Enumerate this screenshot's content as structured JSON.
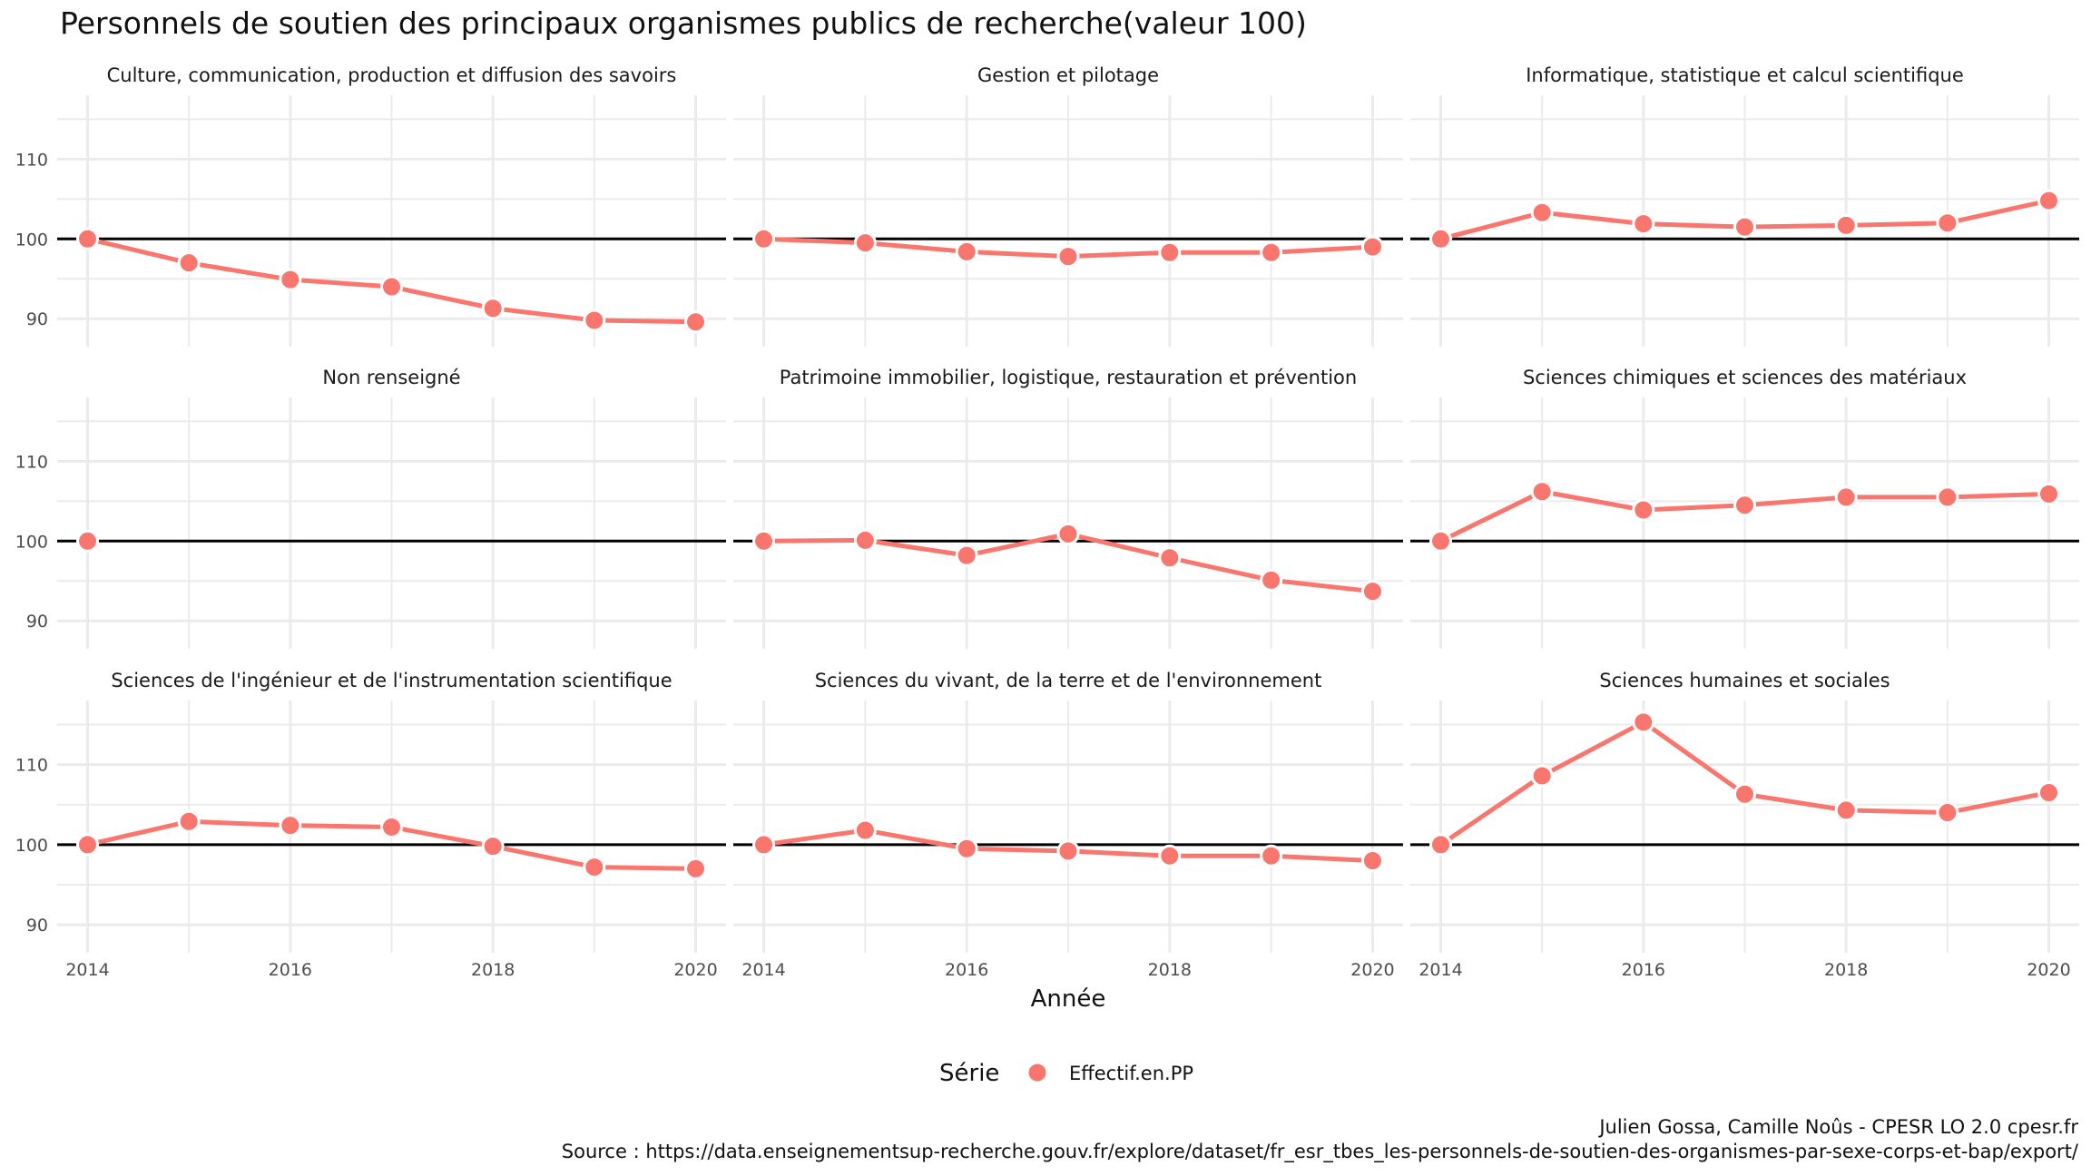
{
  "title": "Personnels de soutien des principaux organismes publics de recherche(valeur 100)",
  "caption_line1": "Julien Gossa, Camille Noûs - CPESR LO 2.0 cpesr.fr",
  "caption_line2": "Source : https://data.enseignementsup-recherche.gouv.fr/explore/dataset/fr_esr_tbes_les-personnels-de-soutien-des-organismes-par-sexe-corps-et-bap/export/",
  "legend": {
    "title": "Série",
    "entries": [
      "Effectif.en.PP"
    ]
  },
  "colors": {
    "series": "#F8766D",
    "reference_line": "#000000",
    "grid": "#EBEBEB"
  },
  "chart_data": {
    "type": "line",
    "xlabel": "Année",
    "ylabel": "",
    "x_ticks": [
      2014,
      2016,
      2018,
      2020
    ],
    "y_ticks": [
      90,
      100,
      110
    ],
    "xlim": [
      2013.7,
      2020.3
    ],
    "ylim": [
      86.5,
      118
    ],
    "reference_value": 100,
    "grid": true,
    "legend_position": "bottom",
    "x": [
      2014,
      2015,
      2016,
      2017,
      2018,
      2019,
      2020
    ],
    "panels": [
      {
        "title": "Culture, communication, production et diffusion des savoirs",
        "series": [
          {
            "name": "Effectif.en.PP",
            "values": [
              100,
              97.0,
              94.9,
              94.0,
              91.3,
              89.8,
              89.6
            ]
          }
        ]
      },
      {
        "title": "Gestion et pilotage",
        "series": [
          {
            "name": "Effectif.en.PP",
            "values": [
              100,
              99.5,
              98.4,
              97.8,
              98.3,
              98.3,
              99.0
            ]
          }
        ]
      },
      {
        "title": "Informatique, statistique et calcul scientifique",
        "series": [
          {
            "name": "Effectif.en.PP",
            "values": [
              100,
              103.3,
              101.9,
              101.5,
              101.7,
              102.0,
              104.8
            ]
          }
        ]
      },
      {
        "title": "Non renseigné",
        "series": [
          {
            "name": "Effectif.en.PP",
            "values": [
              100,
              null,
              null,
              null,
              null,
              null,
              null
            ]
          }
        ]
      },
      {
        "title": "Patrimoine immobilier, logistique, restauration et prévention",
        "series": [
          {
            "name": "Effectif.en.PP",
            "values": [
              100,
              100.1,
              98.2,
              100.9,
              97.9,
              95.1,
              93.7
            ]
          }
        ]
      },
      {
        "title": "Sciences chimiques et sciences des matériaux",
        "series": [
          {
            "name": "Effectif.en.PP",
            "values": [
              100,
              106.2,
              103.9,
              104.5,
              105.5,
              105.5,
              105.9
            ]
          }
        ]
      },
      {
        "title": "Sciences de l'ingénieur et de l'instrumentation scientifique",
        "series": [
          {
            "name": "Effectif.en.PP",
            "values": [
              100,
              102.9,
              102.4,
              102.2,
              99.8,
              97.2,
              97.0
            ]
          }
        ]
      },
      {
        "title": "Sciences du vivant, de la terre et de l'environnement",
        "series": [
          {
            "name": "Effectif.en.PP",
            "values": [
              100,
              101.8,
              99.5,
              99.2,
              98.6,
              98.6,
              98.0
            ]
          }
        ]
      },
      {
        "title": "Sciences humaines et sociales",
        "series": [
          {
            "name": "Effectif.en.PP",
            "values": [
              100,
              108.6,
              115.3,
              106.3,
              104.3,
              104.0,
              106.5
            ]
          }
        ]
      }
    ]
  }
}
